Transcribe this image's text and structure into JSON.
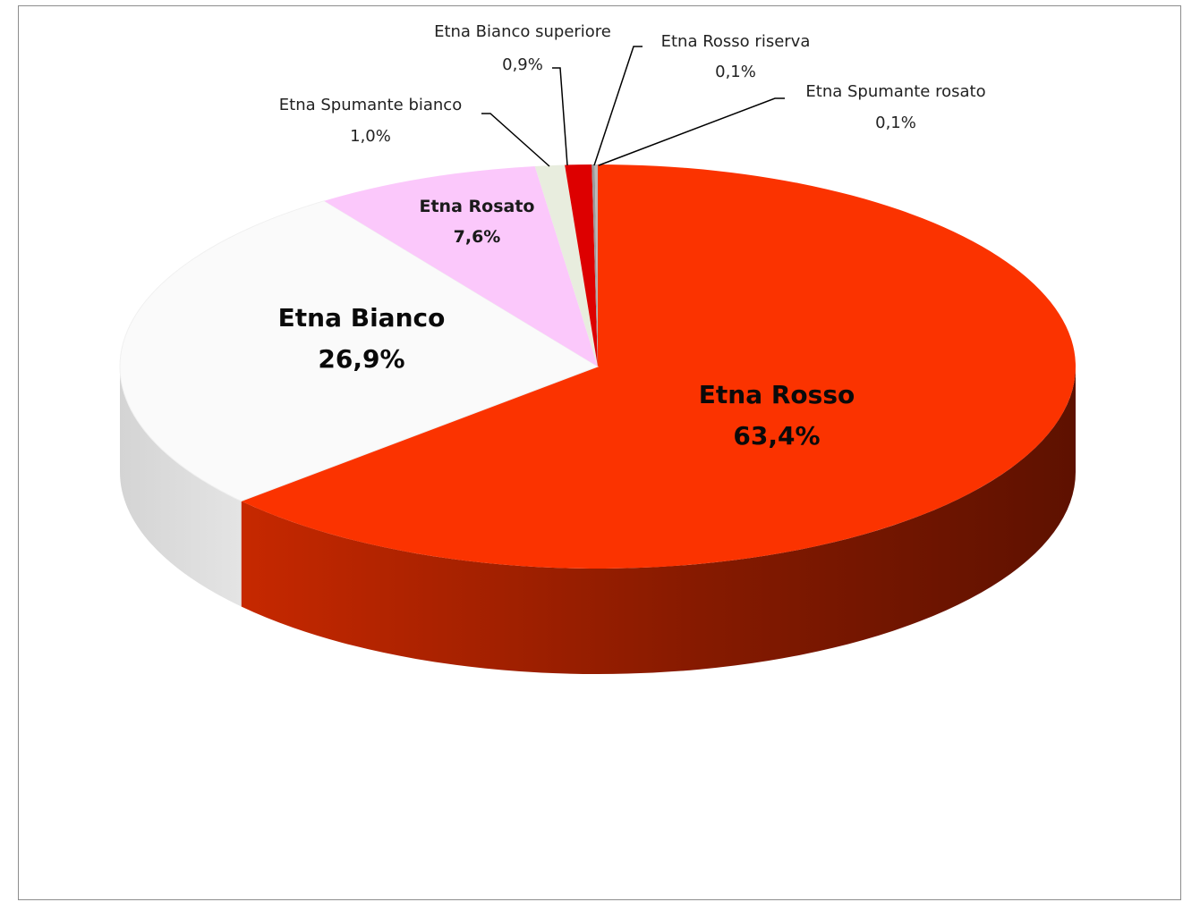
{
  "chart_data": {
    "type": "pie",
    "style": "3d-exploded-ellipse",
    "title": "",
    "legend": "none",
    "slices": [
      {
        "label": "Etna Rosso",
        "value": 63.4,
        "display": "63,4%",
        "color": "#fb3300",
        "side_dark": "#6e1300",
        "side_light": "#c82800"
      },
      {
        "label": "Etna Bianco",
        "value": 26.9,
        "display": "26,9%",
        "color": "#fafafa",
        "side_dark": "#d6d6d6",
        "side_light": "#e6e6e6"
      },
      {
        "label": "Etna Rosato",
        "value": 7.6,
        "display": "7,6%",
        "color": "#fbc8fb",
        "side_dark": "#d8a4d8",
        "side_light": "#e8b8e8"
      },
      {
        "label": "Etna Spumante bianco",
        "value": 1.0,
        "display": "1,0%",
        "color": "#e8edde",
        "side_dark": "#c8cebb",
        "side_light": "#d8ddcc"
      },
      {
        "label": "Etna Bianco superiore",
        "value": 0.9,
        "display": "0,9%",
        "color": "#dd0000",
        "side_dark": "#7a0000",
        "side_light": "#a80000"
      },
      {
        "label": "Etna Rosso riserva",
        "value": 0.1,
        "display": "0,1%",
        "color": "#9a9a9a",
        "side_dark": "#6a6a6a",
        "side_light": "#7a7a7a"
      },
      {
        "label": "Etna Spumante rosato",
        "value": 0.1,
        "display": "0,1%",
        "color": "#b8b8b8",
        "side_dark": "#8a8a8a",
        "side_light": "#9a9a9a"
      }
    ]
  }
}
